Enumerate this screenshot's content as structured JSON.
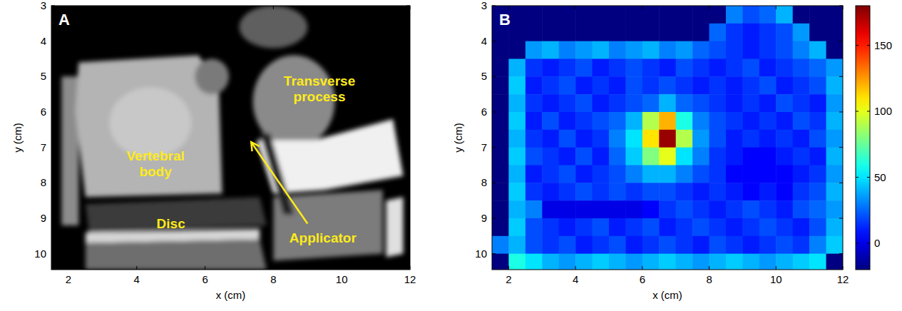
{
  "chart_data": [
    {
      "type": "image",
      "panel": "A",
      "x_label": "x (cm)",
      "y_label": "y (cm)",
      "xlim": [
        1.5,
        12
      ],
      "ylim": [
        3,
        10.45
      ],
      "xticks": [
        2,
        4,
        6,
        8,
        10,
        12
      ],
      "yticks": [
        3,
        4,
        5,
        6,
        7,
        8,
        9,
        10
      ],
      "annotations": [
        {
          "text": "Transverse process",
          "x": 9.35,
          "y": 5.35
        },
        {
          "text": "Vertebral body",
          "x": 4.55,
          "y": 7.45
        },
        {
          "text": "Disc",
          "x": 5.0,
          "y": 9.15
        },
        {
          "text": "Applicator",
          "x": 9.45,
          "y": 9.55
        }
      ],
      "arrow": {
        "from": [
          9.0,
          9.15
        ],
        "to": [
          7.35,
          6.85
        ]
      }
    },
    {
      "type": "heatmap",
      "panel": "B",
      "x_label": "x (cm)",
      "y_label": "y (cm)",
      "xlim": [
        1.5,
        12
      ],
      "ylim": [
        3,
        10.45
      ],
      "xticks": [
        2,
        4,
        6,
        8,
        10,
        12
      ],
      "yticks": [
        3,
        4,
        5,
        6,
        7,
        8,
        9,
        10
      ],
      "x": [
        1.75,
        2.25,
        2.75,
        3.25,
        3.75,
        4.25,
        4.75,
        5.25,
        5.75,
        6.25,
        6.75,
        7.25,
        7.75,
        8.25,
        8.75,
        9.25,
        9.75,
        10.25,
        10.75,
        11.25,
        11.75
      ],
      "y": [
        3.25,
        3.75,
        4.25,
        4.75,
        5.25,
        5.75,
        6.25,
        6.75,
        7.25,
        7.75,
        8.25,
        8.75,
        9.25,
        9.75,
        10.25
      ],
      "cells": [
        [
          -20,
          -20,
          -20,
          -20,
          -20,
          -20,
          -20,
          -20,
          -20,
          -20,
          -20,
          -20,
          -20,
          -20,
          30,
          20,
          25,
          40,
          -20,
          -20,
          -20
        ],
        [
          -20,
          -20,
          -20,
          -20,
          -20,
          -20,
          -20,
          -20,
          -20,
          -20,
          -20,
          -20,
          -20,
          25,
          15,
          10,
          15,
          20,
          35,
          -20,
          -20
        ],
        [
          -20,
          -20,
          35,
          40,
          30,
          35,
          40,
          30,
          35,
          40,
          30,
          35,
          25,
          20,
          15,
          10,
          15,
          20,
          30,
          40,
          -20
        ],
        [
          -20,
          40,
          15,
          10,
          15,
          20,
          10,
          15,
          20,
          15,
          10,
          20,
          15,
          10,
          15,
          20,
          10,
          15,
          20,
          25,
          35
        ],
        [
          -20,
          45,
          10,
          15,
          20,
          10,
          15,
          10,
          20,
          15,
          20,
          15,
          10,
          15,
          10,
          15,
          20,
          10,
          15,
          20,
          40
        ],
        [
          -20,
          40,
          15,
          10,
          15,
          20,
          10,
          15,
          20,
          25,
          40,
          25,
          20,
          15,
          10,
          15,
          10,
          20,
          15,
          10,
          35
        ],
        [
          -20,
          45,
          10,
          20,
          10,
          15,
          20,
          25,
          40,
          90,
          120,
          60,
          30,
          20,
          15,
          10,
          15,
          10,
          20,
          15,
          40
        ],
        [
          -20,
          40,
          15,
          10,
          20,
          10,
          15,
          30,
          50,
          110,
          175,
          90,
          35,
          20,
          10,
          15,
          10,
          15,
          10,
          20,
          35
        ],
        [
          -20,
          45,
          20,
          15,
          10,
          20,
          10,
          25,
          45,
          80,
          100,
          50,
          30,
          15,
          10,
          5,
          5,
          10,
          15,
          10,
          40
        ],
        [
          -20,
          40,
          10,
          15,
          20,
          10,
          15,
          20,
          30,
          40,
          40,
          30,
          20,
          15,
          5,
          5,
          5,
          5,
          10,
          15,
          35
        ],
        [
          -20,
          45,
          15,
          10,
          15,
          20,
          15,
          20,
          15,
          20,
          20,
          15,
          10,
          15,
          10,
          5,
          10,
          5,
          15,
          20,
          40
        ],
        [
          -20,
          40,
          30,
          0,
          0,
          0,
          0,
          0,
          0,
          5,
          15,
          20,
          15,
          10,
          15,
          20,
          15,
          10,
          20,
          25,
          35
        ],
        [
          -20,
          45,
          20,
          15,
          10,
          15,
          20,
          10,
          15,
          20,
          10,
          15,
          20,
          15,
          10,
          15,
          20,
          15,
          10,
          20,
          40
        ],
        [
          30,
          40,
          20,
          15,
          20,
          10,
          15,
          20,
          10,
          15,
          20,
          15,
          10,
          20,
          15,
          10,
          15,
          20,
          15,
          30,
          45
        ],
        [
          -20,
          60,
          50,
          40,
          35,
          40,
          45,
          40,
          35,
          40,
          45,
          40,
          35,
          40,
          45,
          40,
          35,
          40,
          45,
          50,
          -20
        ]
      ],
      "colorbar": {
        "lim": [
          -20,
          180
        ],
        "ticks": [
          0,
          50,
          100,
          150
        ]
      }
    }
  ]
}
